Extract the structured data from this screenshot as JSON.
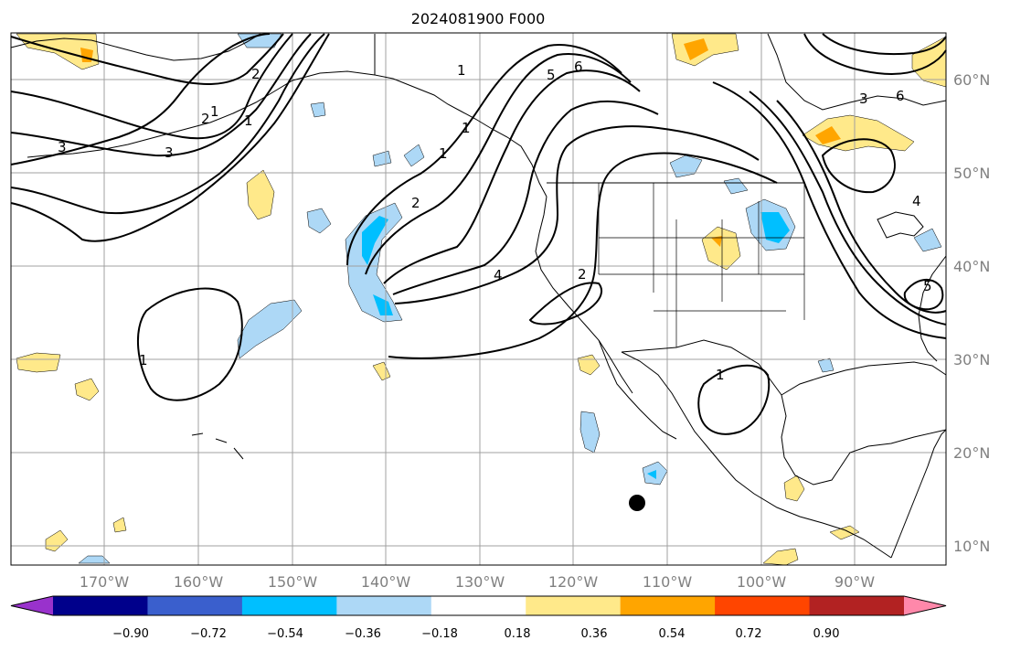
{
  "title": "2024081900 F000",
  "lon_labels": [
    "170°W",
    "160°W",
    "150°W",
    "140°W",
    "130°W",
    "120°W",
    "110°W",
    "100°W",
    "90°W"
  ],
  "lat_labels": [
    "60°N",
    "50°N",
    "40°N",
    "30°N",
    "20°N",
    "10°N"
  ],
  "contour_labels": [
    "3",
    "3",
    "2",
    "1",
    "2",
    "1",
    "1",
    "1",
    "2",
    "1",
    "4",
    "5",
    "6",
    "2",
    "1",
    "1",
    "3",
    "6",
    "5",
    "4"
  ],
  "colorbar": {
    "tick_labels": [
      "−0.90",
      "−0.72",
      "−0.54",
      "−0.36",
      "−0.18",
      "0.18",
      "0.36",
      "0.54",
      "0.72",
      "0.90"
    ],
    "colors": [
      "#9932cc",
      "#00008b",
      "#3a5fcd",
      "#00bfff",
      "#add8f6",
      "#ffffff",
      "#ffe98a",
      "#ffa500",
      "#ff4500",
      "#b22222",
      "#ff88aa"
    ]
  },
  "colors": {
    "grid": "#a0a0a0",
    "coast": "#000000",
    "contour": "#000000",
    "pos_light": "#ffe98a",
    "pos_mid": "#ffa500",
    "neg_light": "#add8f6",
    "neg_mid": "#00bfff"
  },
  "marker": {
    "symbol": "filled-circle",
    "color": "#000000"
  }
}
